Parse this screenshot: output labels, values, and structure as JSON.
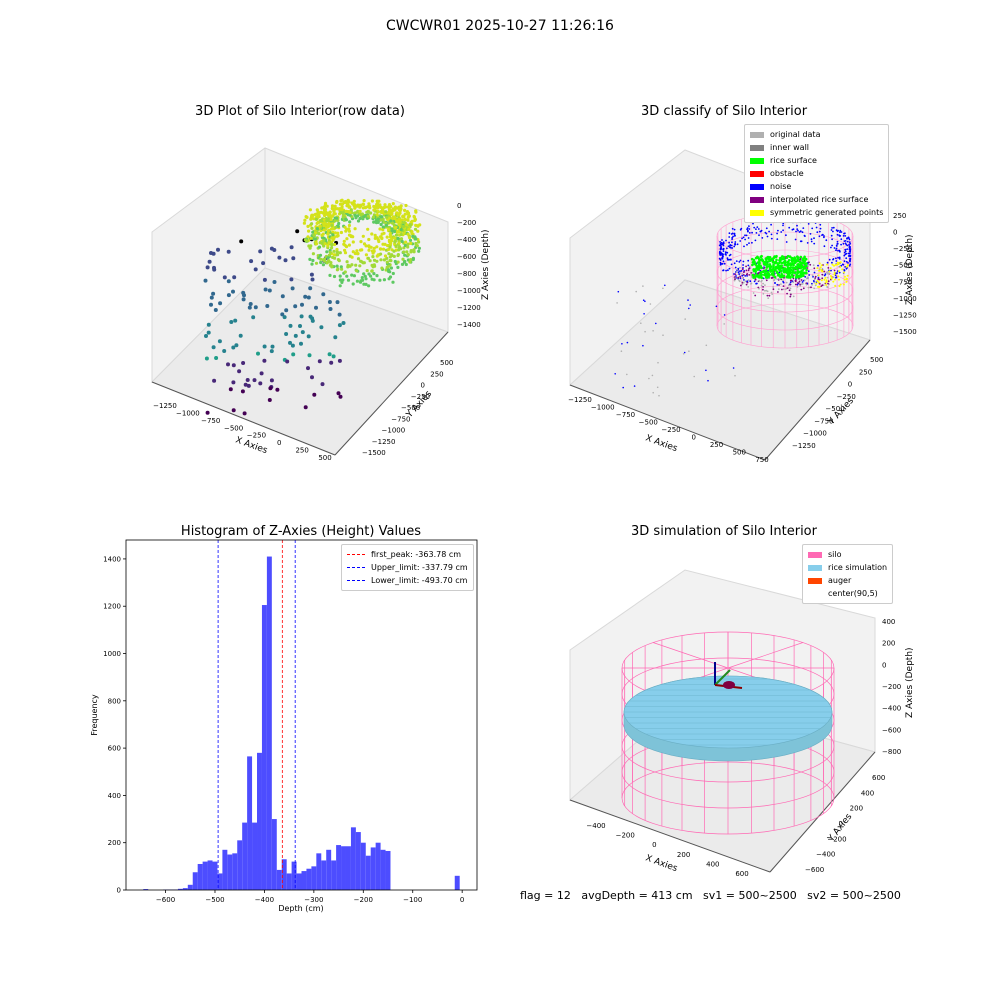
{
  "suptitle": "CWCWR01 2025-10-27 11:26:16",
  "footer": "flag = 12   avgDepth = 413 cm   sv1 = 500~2500   sv2 = 500~2500",
  "chart_data": [
    {
      "type": "scatter",
      "title": "3D Plot of Silo Interior(row data)",
      "xlabel": "X Axies",
      "ylabel": "Y Axies",
      "zlabel": "Z Axies (Depth)",
      "x_ticks": [
        "−1250",
        "−1000",
        "−750",
        "−500",
        "−250",
        "0",
        "250",
        "500"
      ],
      "y_ticks": [
        "500",
        "250",
        "0",
        "−250",
        "−500",
        "−750",
        "−1000",
        "−1250",
        "−1500"
      ],
      "z_ticks": [
        "0",
        "−200",
        "−400",
        "−600",
        "−800",
        "−1000",
        "−1200",
        "−1400"
      ]
    },
    {
      "type": "scatter",
      "title": "3D classify of Silo Interior",
      "xlabel": "X Axies",
      "ylabel": "Y Axies",
      "zlabel": "Z Axies (Depth)",
      "x_ticks": [
        "−1250",
        "−1000",
        "−750",
        "−500",
        "−250",
        "0",
        "250",
        "500",
        "750"
      ],
      "y_ticks": [
        "500",
        "250",
        "0",
        "−250",
        "−500",
        "−750",
        "−1000",
        "−1250"
      ],
      "z_ticks": [
        "250",
        "0",
        "−250",
        "−500",
        "−750",
        "−1000",
        "−1250",
        "−1500"
      ],
      "legend": [
        {
          "label": "original data",
          "color": "#b0b0b0"
        },
        {
          "label": "inner wall",
          "color": "#808080"
        },
        {
          "label": "rice surface",
          "color": "#00ff00"
        },
        {
          "label": "obstacle",
          "color": "#ff0000"
        },
        {
          "label": "noise",
          "color": "#0000ff"
        },
        {
          "label": "interpolated rice surface",
          "color": "#800080"
        },
        {
          "label": "symmetric generated points",
          "color": "#ffff00"
        }
      ]
    },
    {
      "type": "bar",
      "title": "Histogram of Z-Axies (Height) Values",
      "xlabel": "Depth (cm)",
      "ylabel": "Frequency",
      "xlim": [
        -680,
        30
      ],
      "ylim": [
        0,
        1480
      ],
      "x_ticks": [
        -600,
        -500,
        -400,
        -300,
        -200,
        -100,
        0
      ],
      "y_ticks": [
        0,
        200,
        400,
        600,
        800,
        1000,
        1200,
        1400
      ],
      "bar_color": "#4d4dff",
      "bins": [
        [
          -645,
          -635,
          4
        ],
        [
          -635,
          -625,
          0
        ],
        [
          -625,
          -615,
          0
        ],
        [
          -615,
          -605,
          0
        ],
        [
          -605,
          -595,
          2
        ],
        [
          -595,
          -585,
          2
        ],
        [
          -585,
          -575,
          2
        ],
        [
          -575,
          -565,
          5
        ],
        [
          -565,
          -555,
          8
        ],
        [
          -555,
          -545,
          22
        ],
        [
          -545,
          -535,
          75
        ],
        [
          -535,
          -525,
          110
        ],
        [
          -525,
          -515,
          120
        ],
        [
          -515,
          -505,
          125
        ],
        [
          -505,
          -495,
          120
        ],
        [
          -495,
          -485,
          70
        ],
        [
          -485,
          -475,
          170
        ],
        [
          -475,
          -465,
          150
        ],
        [
          -465,
          -455,
          155
        ],
        [
          -455,
          -445,
          210
        ],
        [
          -445,
          -435,
          285
        ],
        [
          -435,
          -425,
          565
        ],
        [
          -425,
          -415,
          285
        ],
        [
          -415,
          -405,
          580
        ],
        [
          -405,
          -395,
          1205
        ],
        [
          -395,
          -385,
          1410
        ],
        [
          -385,
          -375,
          300
        ],
        [
          -375,
          -365,
          85
        ],
        [
          -365,
          -355,
          130
        ],
        [
          -355,
          -345,
          70
        ],
        [
          -345,
          -335,
          120
        ],
        [
          -335,
          -325,
          70
        ],
        [
          -325,
          -315,
          80
        ],
        [
          -315,
          -305,
          90
        ],
        [
          -305,
          -295,
          100
        ],
        [
          -295,
          -285,
          155
        ],
        [
          -285,
          -275,
          125
        ],
        [
          -275,
          -265,
          170
        ],
        [
          -265,
          -255,
          125
        ],
        [
          -255,
          -245,
          190
        ],
        [
          -245,
          -235,
          185
        ],
        [
          -235,
          -225,
          185
        ],
        [
          -225,
          -215,
          265
        ],
        [
          -215,
          -205,
          245
        ],
        [
          -205,
          -195,
          200
        ],
        [
          -195,
          -185,
          145
        ],
        [
          -185,
          -175,
          180
        ],
        [
          -175,
          -165,
          200
        ],
        [
          -165,
          -155,
          170
        ],
        [
          -155,
          -145,
          165
        ],
        [
          -15,
          -5,
          60
        ]
      ],
      "vlines": [
        {
          "x": -363.78,
          "color": "#ff0000",
          "label": "first_peak: -363.78 cm"
        },
        {
          "x": -337.79,
          "color": "#0000ff",
          "label": "Upper_limit: -337.79 cm"
        },
        {
          "x": -493.7,
          "color": "#0000ff",
          "label": "Lower_limit: -493.70 cm"
        }
      ]
    },
    {
      "type": "surface",
      "title": "3D simulation of Silo Interior",
      "xlabel": "X Axies",
      "ylabel": "Y Axies",
      "zlabel": "Z Axies (Depth)",
      "x_ticks": [
        "−400",
        "−200",
        "0",
        "200",
        "400",
        "600"
      ],
      "y_ticks": [
        "600",
        "400",
        "200",
        "0",
        "−200",
        "−400",
        "−600"
      ],
      "z_ticks": [
        "400",
        "200",
        "0",
        "−200",
        "−400",
        "−600",
        "−800"
      ],
      "legend": [
        {
          "label": "silo",
          "color": "#ff69b4"
        },
        {
          "label": "rice simulation",
          "color": "#87ceeb"
        },
        {
          "label": "auger",
          "color": "#ff4500"
        },
        {
          "label": "center(90,5)",
          "color": ""
        }
      ]
    }
  ]
}
